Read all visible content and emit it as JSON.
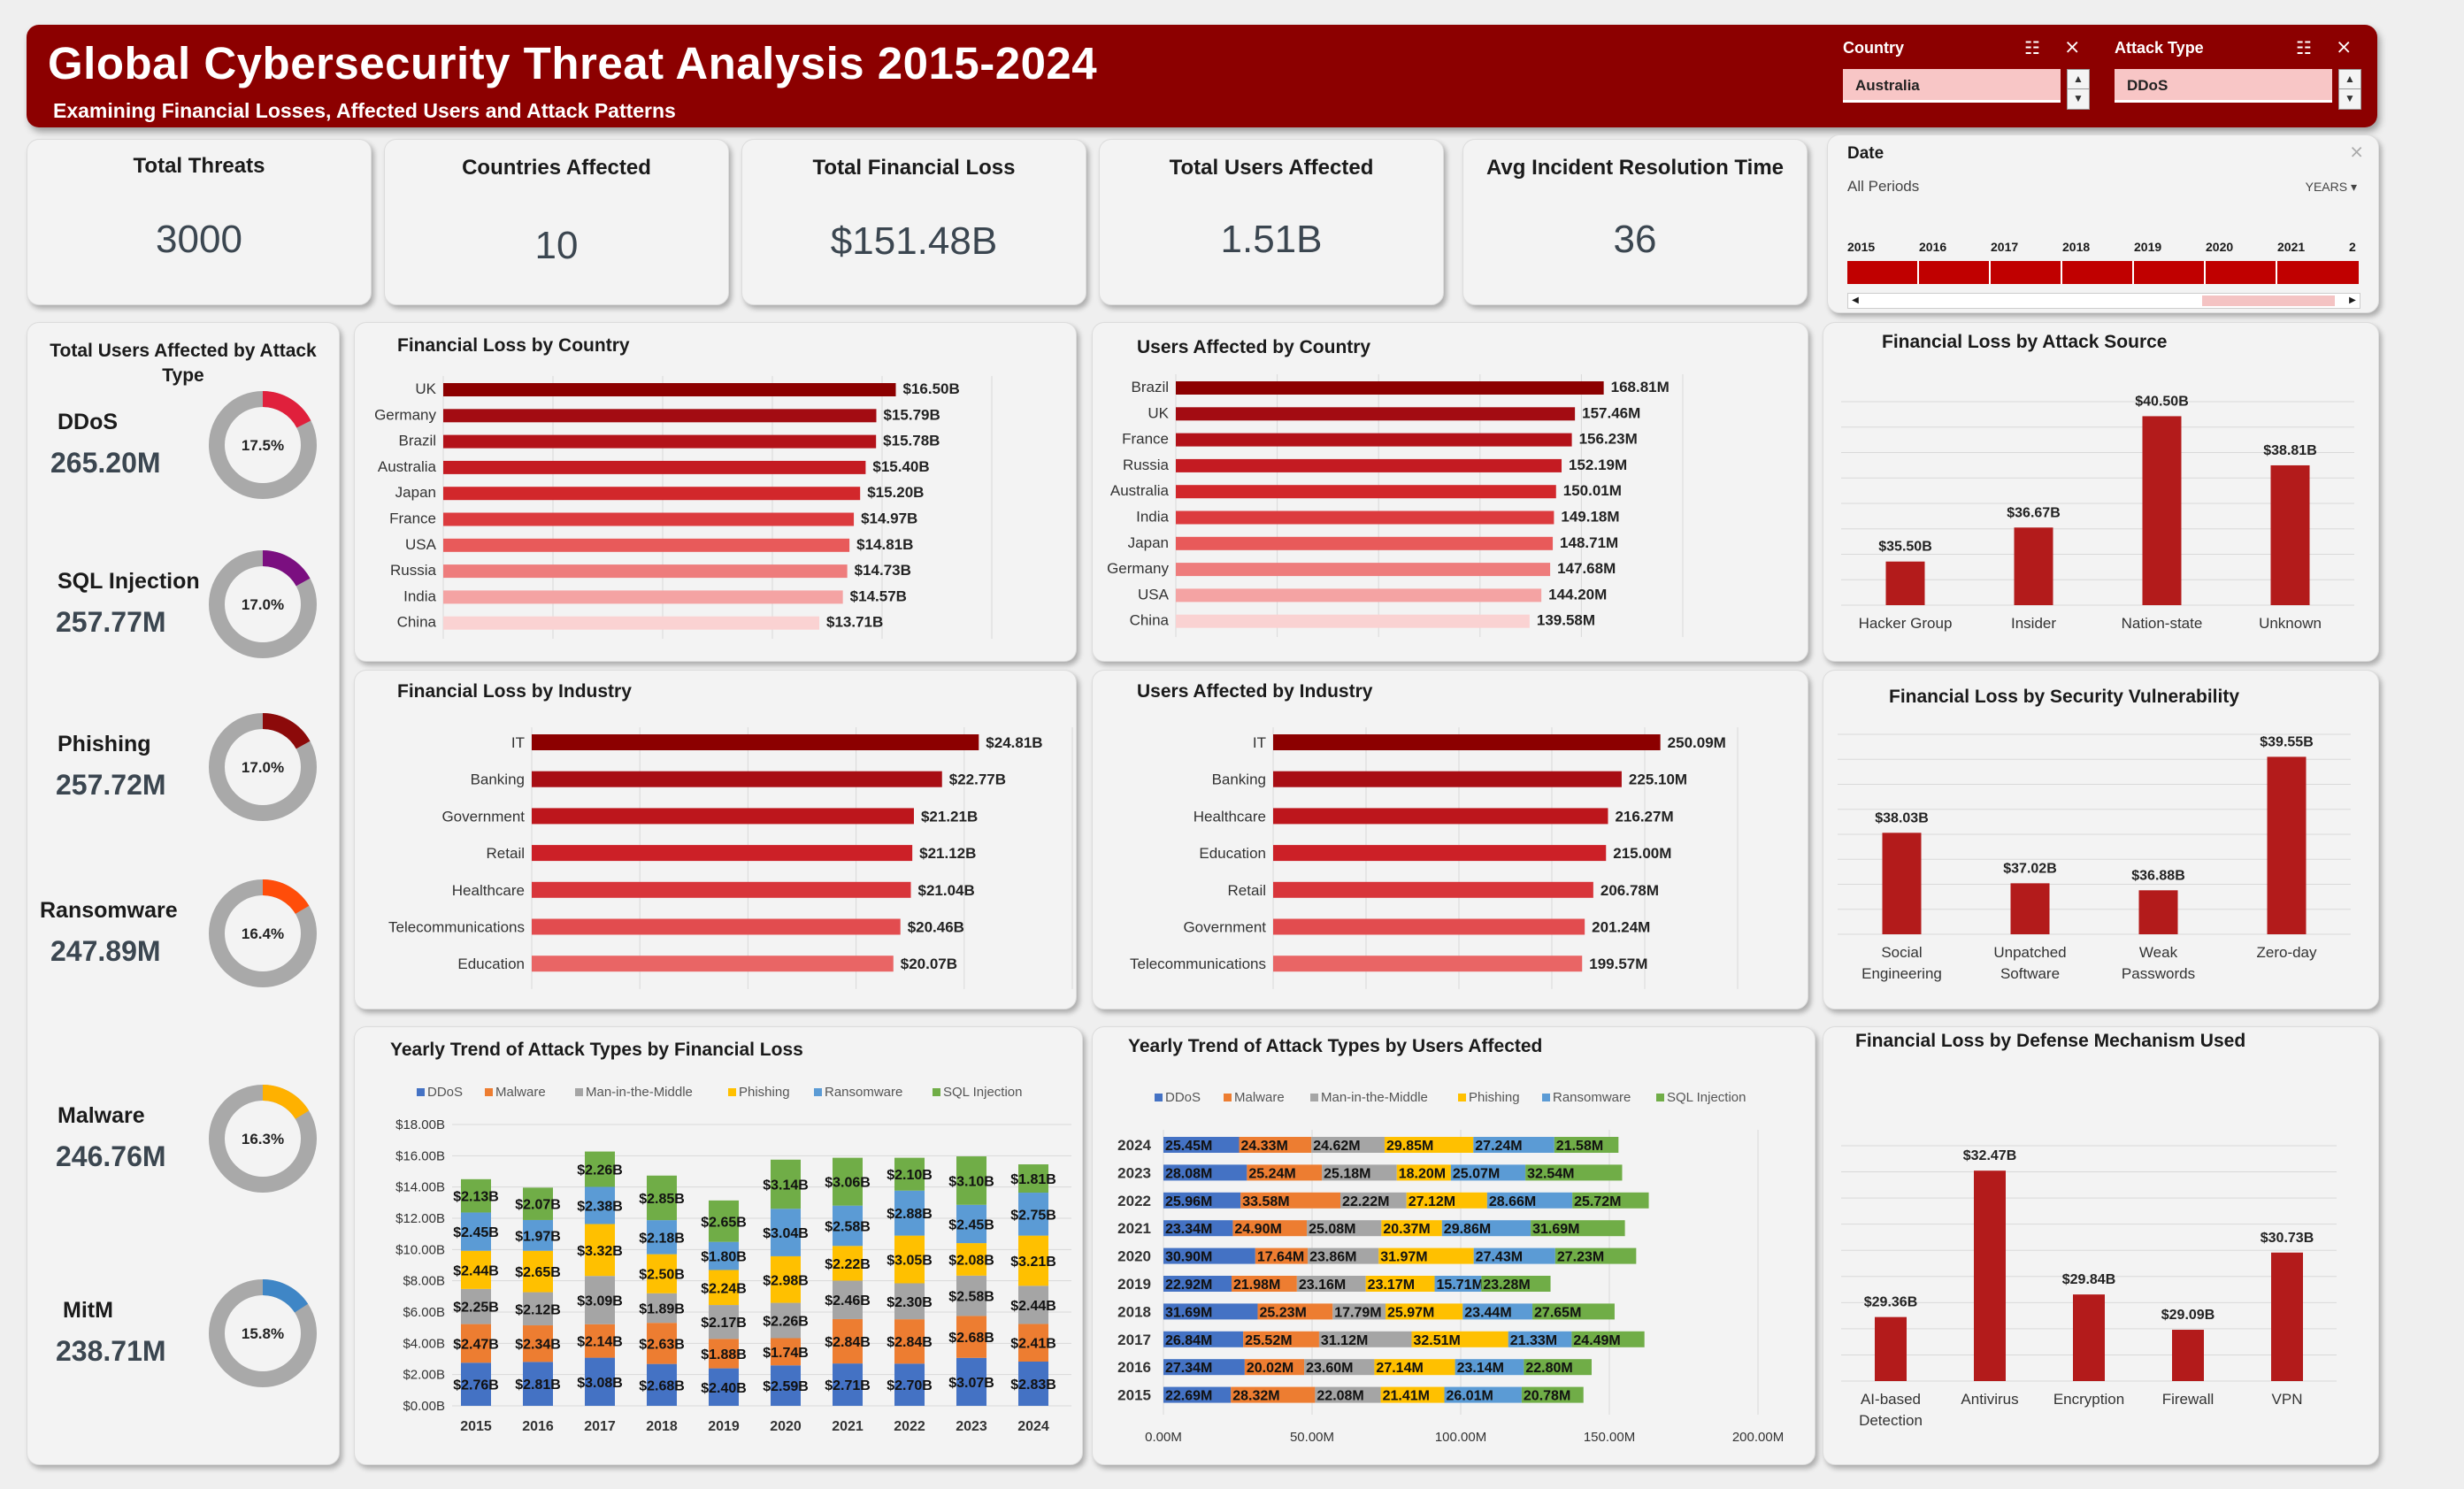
{
  "header": {
    "title": "Global Cybersecurity Threat Analysis 2015-2024",
    "subtitle": "Examining Financial Losses, Affected Users and Attack Patterns"
  },
  "slicers": {
    "country": {
      "label": "Country",
      "selected": "Australia"
    },
    "attack_type": {
      "label": "Attack Type",
      "selected": "DDoS"
    },
    "date": {
      "label": "Date",
      "period": "All Periods",
      "level": "YEARS",
      "years": [
        "2015",
        "2016",
        "2017",
        "2018",
        "2019",
        "2020",
        "2021",
        "2"
      ]
    }
  },
  "kpis": [
    {
      "label": "Total Threats",
      "value": "3000"
    },
    {
      "label": "Countries Affected",
      "value": "10"
    },
    {
      "label": "Total Financial Loss",
      "value": "$151.48B"
    },
    {
      "label": "Total Users Affected",
      "value": "1.51B"
    },
    {
      "label": "Avg Incident Resolution Time",
      "value": "36"
    }
  ],
  "donuts": {
    "title": "Total Users Affected by Attack Type",
    "items": [
      {
        "name": "DDoS",
        "value": "265.20M",
        "pct_label": "17.5%",
        "pct": 17.5,
        "color": "#e0203c"
      },
      {
        "name": "SQL Injection",
        "value": "257.77M",
        "pct_label": "17.0%",
        "pct": 17.0,
        "color": "#7b0f80"
      },
      {
        "name": "Phishing",
        "value": "257.72M",
        "pct_label": "17.0%",
        "pct": 17.0,
        "color": "#8c0a0a"
      },
      {
        "name": "Ransomware",
        "value": "247.89M",
        "pct_label": "16.4%",
        "pct": 16.4,
        "color": "#ff4d0a"
      },
      {
        "name": "Malware",
        "value": "246.76M",
        "pct_label": "16.3%",
        "pct": 16.3,
        "color": "#ffb100"
      },
      {
        "name": "MitM",
        "value": "238.71M",
        "pct_label": "15.8%",
        "pct": 15.8,
        "color": "#3f86c6"
      }
    ]
  },
  "chart_data": [
    {
      "id": "loss_country",
      "type": "bar",
      "orientation": "horizontal",
      "title": "Financial Loss by Country",
      "categories": [
        "UK",
        "Germany",
        "Brazil",
        "Australia",
        "Japan",
        "France",
        "USA",
        "Russia",
        "India",
        "China"
      ],
      "values": [
        16.5,
        15.79,
        15.78,
        15.4,
        15.2,
        14.97,
        14.81,
        14.73,
        14.57,
        13.71
      ],
      "labels": [
        "$16.50B",
        "$15.79B",
        "$15.78B",
        "$15.40B",
        "$15.20B",
        "$14.97B",
        "$14.81B",
        "$14.73B",
        "$14.57B",
        "$13.71B"
      ],
      "colors": [
        "#8c0000",
        "#a30c12",
        "#b31219",
        "#c41b22",
        "#d2272b",
        "#dc3b3e",
        "#e85a5a",
        "#ee7c7c",
        "#f4a3a3",
        "#fad2d2"
      ],
      "xlim": [
        0,
        20
      ]
    },
    {
      "id": "users_country",
      "type": "bar",
      "orientation": "horizontal",
      "title": "Users Affected by Country",
      "categories": [
        "Brazil",
        "UK",
        "France",
        "Russia",
        "Australia",
        "India",
        "Japan",
        "Germany",
        "USA",
        "China"
      ],
      "values": [
        168.81,
        157.46,
        156.23,
        152.19,
        150.01,
        149.18,
        148.71,
        147.68,
        144.2,
        139.58
      ],
      "labels": [
        "168.81M",
        "157.46M",
        "156.23M",
        "152.19M",
        "150.01M",
        "149.18M",
        "148.71M",
        "147.68M",
        "144.20M",
        "139.58M"
      ],
      "colors": [
        "#8c0000",
        "#a30c12",
        "#b31219",
        "#c41b22",
        "#d2272b",
        "#dc3b3e",
        "#e85a5a",
        "#ee7c7c",
        "#f4a3a3",
        "#fad2d2"
      ],
      "xlim": [
        0,
        200
      ]
    },
    {
      "id": "loss_industry",
      "type": "bar",
      "orientation": "horizontal",
      "title": "Financial Loss by Industry",
      "categories": [
        "IT",
        "Banking",
        "Government",
        "Retail",
        "Healthcare",
        "Telecommunications",
        "Education"
      ],
      "values": [
        24.81,
        22.77,
        21.21,
        21.12,
        21.04,
        20.46,
        20.07
      ],
      "labels": [
        "$24.81B",
        "$22.77B",
        "$21.21B",
        "$21.12B",
        "$21.04B",
        "$20.46B",
        "$20.07B"
      ],
      "colors": [
        "#8c0000",
        "#a80e14",
        "#bd161c",
        "#cc2027",
        "#d8353a",
        "#e24c4f",
        "#e96565"
      ],
      "xlim": [
        0,
        30
      ]
    },
    {
      "id": "users_industry",
      "type": "bar",
      "orientation": "horizontal",
      "title": "Users Affected by Industry",
      "categories": [
        "IT",
        "Banking",
        "Healthcare",
        "Education",
        "Retail",
        "Government",
        "Telecommunications"
      ],
      "values": [
        250.09,
        225.1,
        216.27,
        215.0,
        206.78,
        201.24,
        199.57
      ],
      "labels": [
        "250.09M",
        "225.10M",
        "216.27M",
        "215.00M",
        "206.78M",
        "201.24M",
        "199.57M"
      ],
      "colors": [
        "#8c0000",
        "#a80e14",
        "#bd161c",
        "#cc2027",
        "#d8353a",
        "#e24c4f",
        "#e96565"
      ],
      "xlim": [
        0,
        300
      ]
    },
    {
      "id": "loss_source",
      "type": "bar",
      "title": "Financial Loss by Attack Source",
      "categories": [
        "Hacker Group",
        "Insider",
        "Nation-state",
        "Unknown"
      ],
      "values": [
        35.5,
        36.67,
        40.5,
        38.81
      ],
      "labels": [
        "$35.50B",
        "$36.67B",
        "$40.50B",
        "$38.81B"
      ],
      "ylim": [
        34,
        41
      ]
    },
    {
      "id": "loss_vuln",
      "type": "bar",
      "title": "Financial Loss by Security Vulnerability",
      "categories": [
        "Social Engineering",
        "Unpatched Software",
        "Weak Passwords",
        "Zero-day"
      ],
      "values": [
        38.03,
        37.02,
        36.88,
        39.55
      ],
      "labels": [
        "$38.03B",
        "$37.02B",
        "$36.88B",
        "$39.55B"
      ],
      "ylim": [
        36,
        40
      ]
    },
    {
      "id": "loss_defense",
      "type": "bar",
      "title": "Financial Loss by Defense Mechanism Used",
      "categories": [
        "AI-based Detection",
        "Antivirus",
        "Encryption",
        "Firewall",
        "VPN"
      ],
      "values": [
        29.36,
        32.47,
        29.84,
        29.09,
        30.73
      ],
      "labels": [
        "$29.36B",
        "$32.47B",
        "$29.84B",
        "$29.09B",
        "$30.73B"
      ],
      "ylim": [
        28,
        33
      ]
    },
    {
      "id": "trend_loss",
      "type": "bar",
      "stacked": true,
      "title": "Yearly Trend of Attack Types by Financial Loss",
      "categories": [
        "2015",
        "2016",
        "2017",
        "2018",
        "2019",
        "2020",
        "2021",
        "2022",
        "2023",
        "2024"
      ],
      "series": [
        {
          "name": "DDoS",
          "color": "#4472c4",
          "values": [
            2.76,
            2.81,
            3.08,
            2.68,
            2.4,
            2.59,
            2.71,
            2.7,
            3.07,
            2.83
          ]
        },
        {
          "name": "Malware",
          "color": "#ed7d31",
          "values": [
            2.47,
            2.34,
            2.14,
            2.63,
            1.88,
            1.74,
            2.84,
            2.84,
            2.68,
            2.41
          ]
        },
        {
          "name": "Man-in-the-Middle",
          "color": "#a5a5a5",
          "values": [
            2.25,
            2.12,
            3.09,
            1.89,
            2.17,
            2.26,
            2.46,
            2.3,
            2.58,
            2.44
          ]
        },
        {
          "name": "Phishing",
          "color": "#ffc000",
          "values": [
            2.44,
            2.65,
            3.32,
            2.5,
            2.24,
            2.98,
            2.22,
            3.05,
            2.08,
            3.21
          ]
        },
        {
          "name": "Ransomware",
          "color": "#5b9bd5",
          "values": [
            2.45,
            1.97,
            2.38,
            2.18,
            1.8,
            3.04,
            2.58,
            2.88,
            2.45,
            2.75
          ]
        },
        {
          "name": "SQL Injection",
          "color": "#70ad47",
          "values": [
            2.13,
            2.07,
            2.26,
            2.85,
            2.65,
            3.14,
            3.06,
            2.1,
            3.1,
            1.81
          ]
        }
      ],
      "yticks": [
        "$0.00B",
        "$2.00B",
        "$4.00B",
        "$6.00B",
        "$8.00B",
        "$10.00B",
        "$12.00B",
        "$14.00B",
        "$16.00B",
        "$18.00B"
      ],
      "ylim": [
        0,
        18
      ]
    },
    {
      "id": "trend_users",
      "type": "bar",
      "orientation": "horizontal",
      "stacked": true,
      "title": "Yearly Trend of Attack Types by Users Affected",
      "categories": [
        "2024",
        "2023",
        "2022",
        "2021",
        "2020",
        "2019",
        "2018",
        "2017",
        "2016",
        "2015"
      ],
      "series": [
        {
          "name": "DDoS",
          "color": "#4472c4",
          "values": [
            25.45,
            28.08,
            25.96,
            23.34,
            30.9,
            22.92,
            31.69,
            26.84,
            27.34,
            22.69
          ]
        },
        {
          "name": "Malware",
          "color": "#ed7d31",
          "values": [
            24.33,
            25.24,
            33.58,
            24.9,
            17.64,
            21.98,
            25.23,
            25.52,
            20.02,
            28.32
          ]
        },
        {
          "name": "Man-in-the-Middle",
          "color": "#a5a5a5",
          "values": [
            24.62,
            25.18,
            22.22,
            25.08,
            23.86,
            23.16,
            17.79,
            31.12,
            23.6,
            22.08
          ]
        },
        {
          "name": "Phishing",
          "color": "#ffc000",
          "values": [
            29.85,
            18.2,
            27.12,
            20.37,
            31.97,
            23.17,
            25.97,
            32.51,
            27.14,
            21.41
          ]
        },
        {
          "name": "Ransomware",
          "color": "#5b9bd5",
          "values": [
            27.24,
            25.07,
            28.66,
            29.86,
            27.43,
            15.71,
            23.44,
            21.33,
            23.14,
            26.01
          ]
        },
        {
          "name": "SQL Injection",
          "color": "#70ad47",
          "values": [
            21.58,
            32.54,
            25.72,
            31.69,
            27.23,
            23.28,
            27.65,
            24.49,
            22.8,
            20.78
          ]
        }
      ],
      "xticks": [
        "0.00M",
        "50.00M",
        "100.00M",
        "150.00M",
        "200.00M"
      ],
      "xlim": [
        0,
        200
      ]
    }
  ]
}
